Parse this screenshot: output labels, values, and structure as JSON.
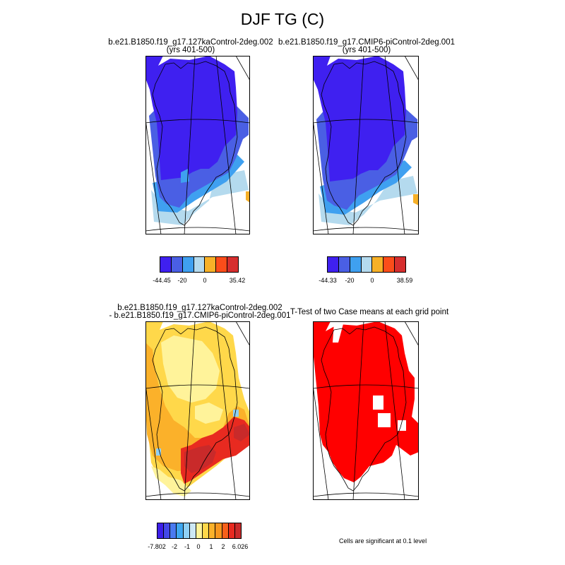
{
  "title": "DJF TG (C)",
  "panels": [
    {
      "title1": "b.e21.B1850.f19_g17.127kaControl-2deg.002",
      "title2": "(yrs 401-500)"
    },
    {
      "title1": "b.e21.B1850.f19_g17.CMIP6-piControl-2deg.001",
      "title2": "(yrs 401-500)"
    },
    {
      "title1": "b.e21.B1850.f19_g17.127kaControl-2deg.002",
      "title2": "- b.e21.B1850.f19_g17.CMIP6-piControl-2deg.001"
    },
    {
      "title1": "T-Test of two Case means at each grid point"
    }
  ],
  "colorbars": [
    {
      "labels": [
        "-44.45",
        "-20",
        "0",
        "35.42"
      ],
      "colors": [
        "#3f20f0",
        "#4a5fe4",
        "#3fa0f0",
        "#b4daee",
        "#f7b128",
        "#fb4d1a",
        "#d62e2e"
      ]
    },
    {
      "labels": [
        "-44.33",
        "-20",
        "0",
        "38.59"
      ],
      "colors": [
        "#3f20f0",
        "#4a5fe4",
        "#3fa0f0",
        "#b4daee",
        "#f7b128",
        "#fb4d1a",
        "#d62e2e"
      ]
    },
    {
      "labels": [
        "-7.802",
        "-2",
        "-1",
        "0",
        "1",
        "2",
        "6.026"
      ],
      "colors": [
        "#3c1ee8",
        "#4448e8",
        "#4a7af0",
        "#3fa7f0",
        "#8fd0f5",
        "#cde8f5",
        "#fff39a",
        "#ffd84a",
        "#fbb12a",
        "#f7961f",
        "#f8601a",
        "#e82a20",
        "#c92a2a"
      ]
    }
  ],
  "significance_note": "Cells are significant at 0.1 level",
  "colors": {
    "cold": "#3f20f0",
    "significant": "#ff0000"
  }
}
